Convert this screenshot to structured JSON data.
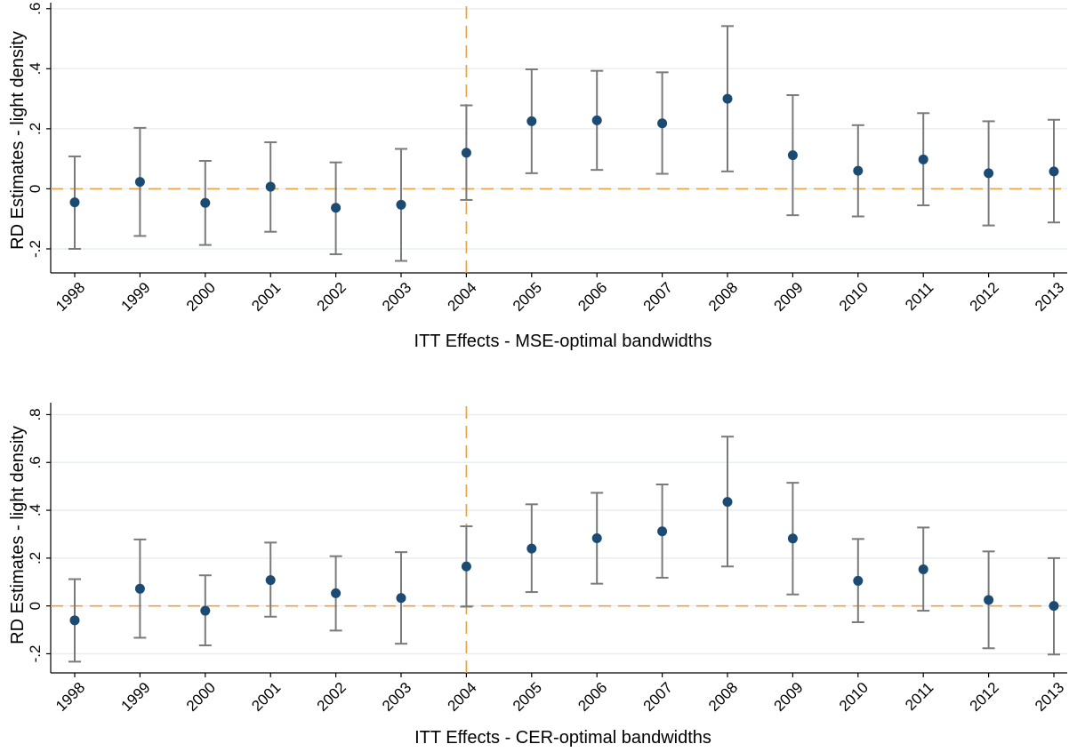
{
  "chart_data": [
    {
      "type": "scatter",
      "title": "",
      "xlabel": "ITT Effects - MSE-optimal bandwidths",
      "ylabel": "RD Estimates - light density",
      "categories": [
        "1998",
        "1999",
        "2000",
        "2001",
        "2002",
        "2003",
        "2004",
        "2005",
        "2006",
        "2007",
        "2008",
        "2009",
        "2010",
        "2011",
        "2012",
        "2013"
      ],
      "yticks": [
        -0.2,
        0,
        0.2,
        0.4,
        0.6
      ],
      "ytick_labels": [
        "-.2",
        "0",
        ".2",
        ".4",
        ".6"
      ],
      "ylim": [
        -0.28,
        0.62
      ],
      "grid": true,
      "reference_lines": {
        "y": 0,
        "x_category": "2004"
      },
      "series": [
        {
          "estimate": [
            -0.045,
            0.023,
            -0.047,
            0.007,
            -0.063,
            -0.053,
            0.12,
            0.225,
            0.228,
            0.218,
            0.3,
            0.112,
            0.06,
            0.098,
            0.052,
            0.058
          ],
          "ci_low": [
            -0.2,
            -0.157,
            -0.187,
            -0.143,
            -0.218,
            -0.24,
            -0.037,
            0.052,
            0.063,
            0.05,
            0.058,
            -0.088,
            -0.092,
            -0.055,
            -0.122,
            -0.112
          ],
          "ci_high": [
            0.108,
            0.203,
            0.093,
            0.155,
            0.088,
            0.133,
            0.278,
            0.398,
            0.393,
            0.388,
            0.542,
            0.312,
            0.212,
            0.252,
            0.225,
            0.23
          ]
        }
      ],
      "colors": {
        "points": "#1b4a73",
        "ci": "#7a7a7a",
        "reference": "#e8a246",
        "grid": "#eaeef2"
      }
    },
    {
      "type": "scatter",
      "title": "",
      "xlabel": "ITT Effects - CER-optimal bandwidths",
      "ylabel": "RD Estimates - light density",
      "categories": [
        "1998",
        "1999",
        "2000",
        "2001",
        "2002",
        "2003",
        "2004",
        "2005",
        "2006",
        "2007",
        "2008",
        "2009",
        "2010",
        "2011",
        "2012",
        "2013"
      ],
      "yticks": [
        -0.2,
        0,
        0.2,
        0.4,
        0.6,
        0.8
      ],
      "ytick_labels": [
        "-.2",
        "0",
        ".2",
        ".4",
        ".6",
        ".8"
      ],
      "ylim": [
        -0.28,
        0.85
      ],
      "grid": true,
      "reference_lines": {
        "y": 0,
        "x_category": "2004"
      },
      "series": [
        {
          "estimate": [
            -0.06,
            0.072,
            -0.02,
            0.108,
            0.053,
            0.033,
            0.165,
            0.24,
            0.283,
            0.312,
            0.435,
            0.282,
            0.105,
            0.153,
            0.025,
            0.0
          ],
          "ci_low": [
            -0.233,
            -0.133,
            -0.165,
            -0.045,
            -0.103,
            -0.158,
            -0.003,
            0.058,
            0.093,
            0.118,
            0.165,
            0.048,
            -0.068,
            -0.02,
            -0.177,
            -0.203
          ],
          "ci_high": [
            0.112,
            0.278,
            0.128,
            0.265,
            0.208,
            0.225,
            0.333,
            0.425,
            0.473,
            0.508,
            0.708,
            0.515,
            0.28,
            0.328,
            0.228,
            0.2
          ]
        }
      ],
      "colors": {
        "points": "#1b4a73",
        "ci": "#7a7a7a",
        "reference": "#e8a246",
        "grid": "#eaeef2"
      }
    }
  ]
}
